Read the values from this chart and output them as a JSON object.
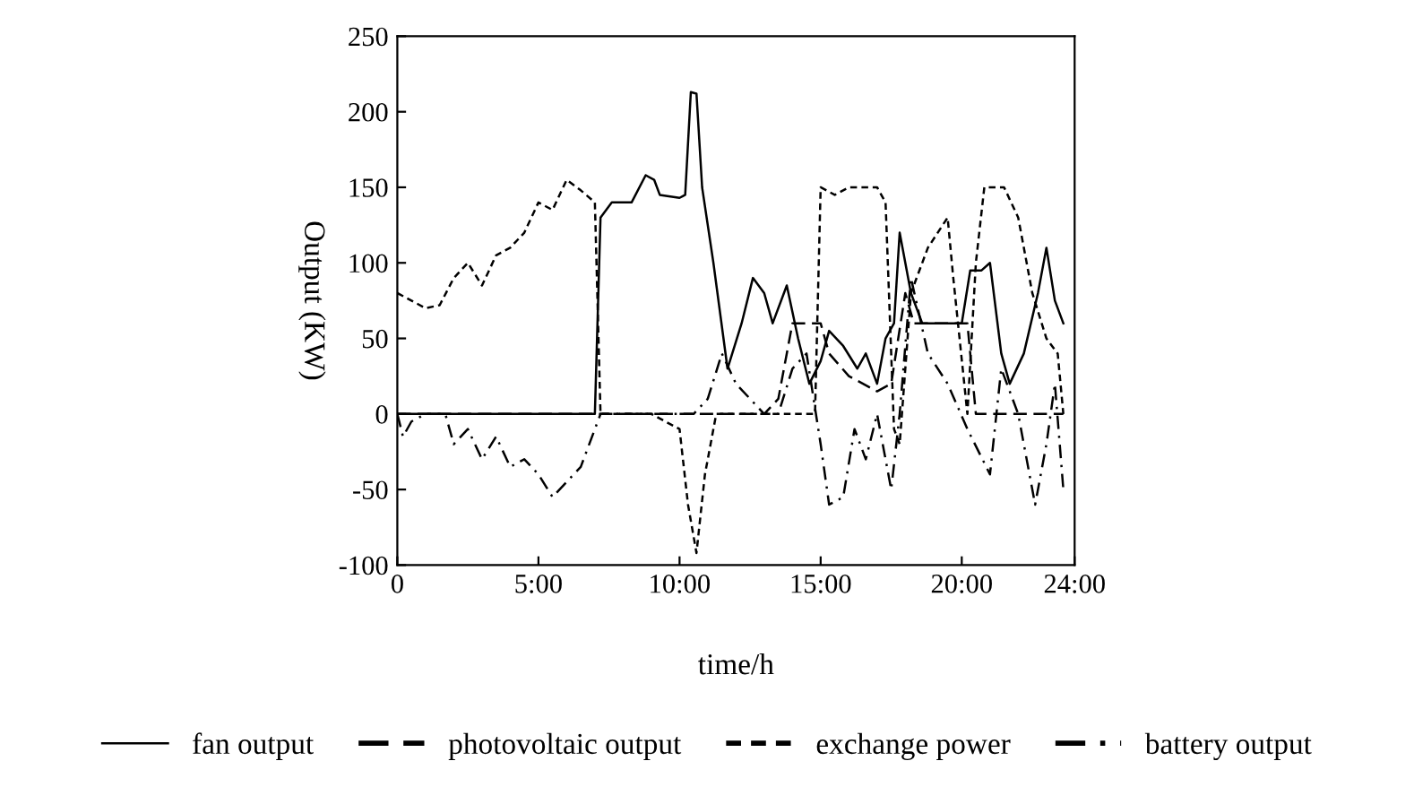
{
  "chart_data": {
    "type": "line",
    "xlabel": "time/h",
    "ylabel": "Output (KW)",
    "xlim": [
      0,
      24
    ],
    "xticks": [
      {
        "value": 0,
        "label": "0"
      },
      {
        "value": 5,
        "label": "5:00"
      },
      {
        "value": 10,
        "label": "10:00"
      },
      {
        "value": 15,
        "label": "15:00"
      },
      {
        "value": 20,
        "label": "20:00"
      },
      {
        "value": 24,
        "label": "24:00"
      }
    ],
    "ylim": [
      -100,
      250
    ],
    "yticks": [
      -100,
      -50,
      0,
      50,
      100,
      150,
      200,
      250
    ],
    "grid": false,
    "legend": "bottom",
    "marker": "none",
    "series": [
      {
        "name": "fan output",
        "color": "#000000",
        "line_style": "solid",
        "x": [
          0,
          7.0,
          7.2,
          7.6,
          8.3,
          8.8,
          9.1,
          9.3,
          10.0,
          10.2,
          10.4,
          10.6,
          10.8,
          11.2,
          11.7,
          12.2,
          12.6,
          13.0,
          13.3,
          13.8,
          14.2,
          14.6,
          15.0,
          15.3,
          15.8,
          16.3,
          16.6,
          17.0,
          17.3,
          17.6,
          17.8,
          18.2,
          18.6,
          19.5,
          20.0,
          20.3,
          20.7,
          21.0,
          21.4,
          21.7,
          22.2,
          22.7,
          23.0,
          23.3,
          23.6
        ],
        "values": [
          0,
          0,
          130,
          140,
          140,
          158,
          155,
          145,
          143,
          145,
          213,
          212,
          150,
          100,
          30,
          60,
          90,
          80,
          60,
          85,
          50,
          20,
          35,
          55,
          45,
          30,
          40,
          20,
          50,
          60,
          120,
          80,
          60,
          60,
          60,
          95,
          95,
          100,
          40,
          20,
          40,
          80,
          110,
          75,
          60
        ]
      },
      {
        "name": "photovoltaic output",
        "color": "#000000",
        "line_style": "dashed",
        "x": [
          0,
          12.5,
          13.0,
          13.5,
          14.0,
          15.0,
          15.3,
          16.0,
          17.0,
          17.5,
          18.0,
          18.3,
          20.2,
          20.5,
          23.6
        ],
        "values": [
          0,
          0,
          0,
          10,
          60,
          60,
          40,
          25,
          15,
          20,
          80,
          60,
          60,
          0,
          0
        ]
      },
      {
        "name": "exchange power",
        "color": "#000000",
        "line_style": "dotted",
        "x": [
          0,
          0.5,
          1,
          1.5,
          2,
          2.5,
          3,
          3.5,
          4,
          4.5,
          5,
          5.5,
          6,
          6.5,
          7,
          7.2,
          8,
          9,
          10,
          10.3,
          10.6,
          10.9,
          11.3,
          14,
          14.8,
          15.0,
          15.5,
          16,
          17,
          17.3,
          17.6,
          17.8,
          18.2,
          18.8,
          19.5,
          19.7,
          20.2,
          20.5,
          20.8,
          21.5,
          22,
          22.5,
          23,
          23.4,
          23.6
        ],
        "values": [
          80,
          75,
          70,
          72,
          90,
          100,
          85,
          105,
          110,
          120,
          140,
          135,
          155,
          148,
          140,
          0,
          0,
          0,
          -10,
          -60,
          -92,
          -40,
          0,
          0,
          0,
          150,
          145,
          150,
          150,
          140,
          -10,
          -20,
          80,
          110,
          130,
          90,
          0,
          100,
          150,
          150,
          130,
          80,
          50,
          40,
          0
        ]
      },
      {
        "name": "battery output",
        "color": "#000000",
        "line_style": "dashdot",
        "x": [
          0,
          0.2,
          0.5,
          1,
          1.7,
          2,
          2.5,
          3,
          3.5,
          4,
          4.5,
          5,
          5.5,
          6,
          6.5,
          7,
          7.2,
          10,
          10.5,
          11,
          11.5,
          12,
          13,
          13.5,
          14,
          14.5,
          15.0,
          15.3,
          15.8,
          16.2,
          16.6,
          17,
          17.5,
          17.8,
          18.2,
          18.8,
          19.5,
          20.2,
          21,
          21.4,
          22,
          22.6,
          23,
          23.3,
          23.6
        ],
        "values": [
          0,
          -15,
          -5,
          0,
          0,
          -20,
          -10,
          -30,
          -15,
          -35,
          -30,
          -40,
          -55,
          -45,
          -35,
          -10,
          0,
          0,
          0,
          10,
          40,
          20,
          0,
          0,
          30,
          40,
          -20,
          -60,
          -55,
          -10,
          -30,
          0,
          -50,
          0,
          90,
          40,
          20,
          -10,
          -40,
          30,
          0,
          -60,
          -20,
          20,
          -50
        ]
      }
    ]
  }
}
